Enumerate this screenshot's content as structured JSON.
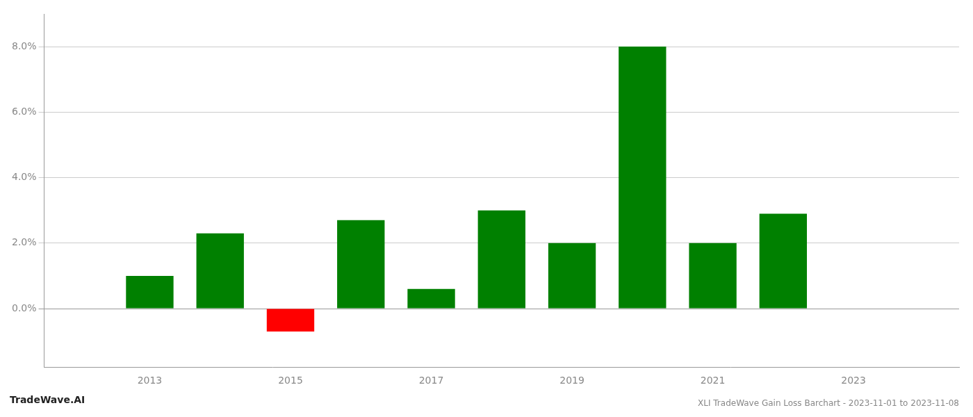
{
  "chart_data": {
    "type": "bar",
    "title": "XLI TradeWave Gain Loss Barchart - 2023-11-01 to 2023-11-08",
    "annotations": [
      "TradeWave.AI"
    ],
    "x": [
      2013,
      2014,
      2015,
      2016,
      2017,
      2018,
      2019,
      2020,
      2021,
      2022
    ],
    "values": [
      0.01,
      0.023,
      -0.007,
      0.027,
      0.006,
      0.03,
      0.02,
      0.08,
      0.02,
      0.029
    ],
    "colors": [
      "#008000",
      "#008000",
      "#ff0000",
      "#008000",
      "#008000",
      "#008000",
      "#008000",
      "#008000",
      "#008000",
      "#008000"
    ],
    "xlim": [
      2011.5,
      2024.5
    ],
    "xticks": [
      2013,
      2015,
      2017,
      2019,
      2021,
      2023
    ],
    "ylim": [
      -0.018,
      0.09
    ],
    "yticks": [
      {
        "value": 0.0,
        "label": "0.0%"
      },
      {
        "value": 0.02,
        "label": "2.0%"
      },
      {
        "value": 0.04,
        "label": "4.0%"
      },
      {
        "value": 0.06,
        "label": "6.0%"
      },
      {
        "value": 0.08,
        "label": "8.0%"
      }
    ],
    "grid": "y"
  }
}
